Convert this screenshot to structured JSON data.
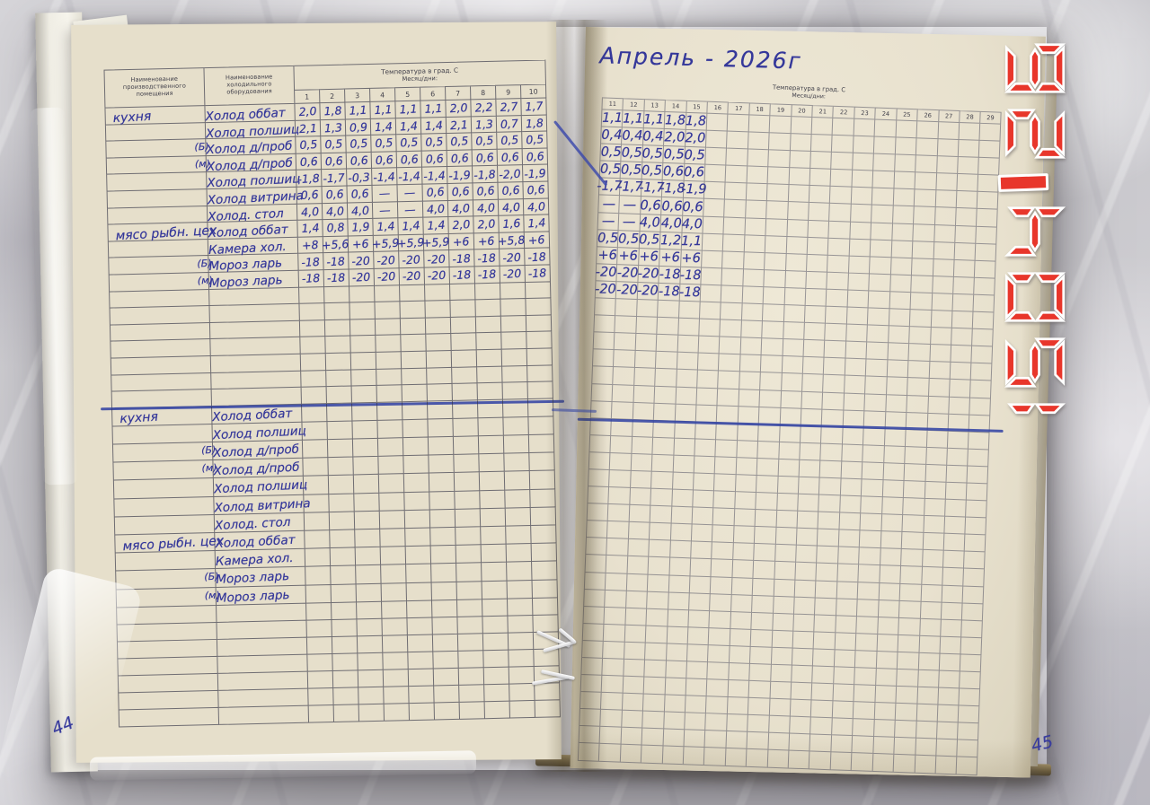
{
  "left_page": {
    "page_number": "44",
    "header": {
      "col1": "Наименование производственного помещения",
      "col2": "Наименование холодильного оборудования",
      "temp": "Температура в град. С",
      "days": "Месяц/дни:",
      "day_numbers": [
        "1",
        "2",
        "3",
        "4",
        "5",
        "6",
        "7",
        "8",
        "9",
        "10"
      ]
    },
    "upper_rows": [
      {
        "room": "кухня",
        "prefix": "",
        "equipment": "Холод оббат",
        "values": [
          "2,0",
          "1,8",
          "1,1",
          "1,1",
          "1,1",
          "1,1",
          "2,0",
          "2,2",
          "2,7",
          "1,7"
        ]
      },
      {
        "room": "",
        "prefix": "",
        "equipment": "Холод полшиц",
        "values": [
          "2,1",
          "1,3",
          "0,9",
          "1,4",
          "1,4",
          "1,4",
          "2,1",
          "1,3",
          "0,7",
          "1,8"
        ]
      },
      {
        "room": "",
        "prefix": "(Б)",
        "equipment": "Холод д/проб",
        "values": [
          "0,5",
          "0,5",
          "0,5",
          "0,5",
          "0,5",
          "0,5",
          "0,5",
          "0,5",
          "0,5",
          "0,5"
        ]
      },
      {
        "room": "",
        "prefix": "(м)",
        "equipment": "Холод д/проб",
        "values": [
          "0,6",
          "0,6",
          "0,6",
          "0,6",
          "0,6",
          "0,6",
          "0,6",
          "0,6",
          "0,6",
          "0,6"
        ]
      },
      {
        "room": "",
        "prefix": "",
        "equipment": "Холод полшиц",
        "values": [
          "-1,8",
          "-1,7",
          "-0,3",
          "-1,4",
          "-1,4",
          "-1,4",
          "-1,9",
          "-1,8",
          "-2,0",
          "-1,9"
        ]
      },
      {
        "room": "",
        "prefix": "",
        "equipment": "Холод витрина",
        "values": [
          "0,6",
          "0,6",
          "0,6",
          "—",
          "—",
          "0,6",
          "0,6",
          "0,6",
          "0,6",
          "0,6"
        ]
      },
      {
        "room": "",
        "prefix": "",
        "equipment": "Холод. стол",
        "values": [
          "4,0",
          "4,0",
          "4,0",
          "—",
          "—",
          "4,0",
          "4,0",
          "4,0",
          "4,0",
          "4,0"
        ]
      },
      {
        "room": "мясо рыбн. цех",
        "prefix": "",
        "equipment": "Холод оббат",
        "values": [
          "1,4",
          "0,8",
          "1,9",
          "1,4",
          "1,4",
          "1,4",
          "2,0",
          "2,0",
          "1,6",
          "1,4"
        ]
      },
      {
        "room": "",
        "prefix": "",
        "equipment": "Камера хол.",
        "values": [
          "+8",
          "+5,6",
          "+6",
          "+5,9",
          "+5,9",
          "+5,9",
          "+6",
          "+6",
          "+5,8",
          "+6"
        ]
      },
      {
        "room": "",
        "prefix": "(Б)",
        "equipment": "Мороз ларь",
        "values": [
          "-18",
          "-18",
          "-20",
          "-20",
          "-20",
          "-20",
          "-18",
          "-18",
          "-20",
          "-18"
        ]
      },
      {
        "room": "",
        "prefix": "(м)",
        "equipment": "Мороз ларь",
        "values": [
          "-18",
          "-18",
          "-20",
          "-20",
          "-20",
          "-20",
          "-18",
          "-18",
          "-20",
          "-18"
        ]
      }
    ],
    "lower_rows": [
      {
        "room": "кухня",
        "prefix": "",
        "equipment": "Холод оббат"
      },
      {
        "room": "",
        "prefix": "",
        "equipment": "Холод полшиц"
      },
      {
        "room": "",
        "prefix": "(Б)",
        "equipment": "Холод д/проб"
      },
      {
        "room": "",
        "prefix": "(м)",
        "equipment": "Холод д/проб"
      },
      {
        "room": "",
        "prefix": "",
        "equipment": "Холод полшиц"
      },
      {
        "room": "",
        "prefix": "",
        "equipment": "Холод витрина"
      },
      {
        "room": "",
        "prefix": "",
        "equipment": "Холод. стол"
      },
      {
        "room": "мясо рыбн. цех",
        "prefix": "",
        "equipment": "Холод оббат"
      },
      {
        "room": "",
        "prefix": "",
        "equipment": "Камера хол."
      },
      {
        "room": "",
        "prefix": "(Б)",
        "equipment": "Мороз ларь"
      },
      {
        "room": "",
        "prefix": "(м)",
        "equipment": "Мороз ларь"
      }
    ]
  },
  "right_page": {
    "page_number": "45",
    "title": "Апрель - 2026г",
    "header": {
      "temp": "Температура в град. С",
      "days": "Месяц/дни:",
      "day_numbers": [
        "11",
        "12",
        "13",
        "14",
        "15",
        "16",
        "17",
        "18",
        "19",
        "20",
        "21",
        "22",
        "23",
        "24",
        "25",
        "26",
        "27",
        "28",
        "29"
      ]
    },
    "rows": [
      {
        "values": [
          "1,1",
          "1,1",
          "1,1",
          "1,8",
          "1,8"
        ]
      },
      {
        "values": [
          "0,4",
          "0,4",
          "0,4",
          "2,0",
          "2,0"
        ]
      },
      {
        "values": [
          "0,5",
          "0,5",
          "0,5",
          "0,5",
          "0,5"
        ]
      },
      {
        "values": [
          "0,5",
          "0,5",
          "0,5",
          "0,6",
          "0,6"
        ]
      },
      {
        "values": [
          "-1,7",
          "-1,7",
          "-1,7",
          "-1,8",
          "-1,9"
        ]
      },
      {
        "values": [
          "—",
          "—",
          "0,6",
          "0,6",
          "0,6"
        ]
      },
      {
        "values": [
          "—",
          "—",
          "4,0",
          "4,0",
          "4,0"
        ]
      },
      {
        "values": [
          "0,5",
          "0,5",
          "0,5",
          "1,2",
          "1,1"
        ]
      },
      {
        "values": [
          "+6",
          "+6",
          "+6",
          "+6",
          "+6"
        ]
      },
      {
        "values": [
          "-20",
          "-20",
          "-20",
          "-18",
          "-18"
        ]
      },
      {
        "values": [
          "-20",
          "-20",
          "-20",
          "-18",
          "-18"
        ]
      }
    ]
  },
  "timestamp_overlay": {
    "digits": "1504-26",
    "color": "#e8362b",
    "outline": "#ffffff"
  },
  "colors": {
    "ink": "#34379a",
    "divider_line": "#2e3fa3",
    "page": "#e8e1ce"
  }
}
